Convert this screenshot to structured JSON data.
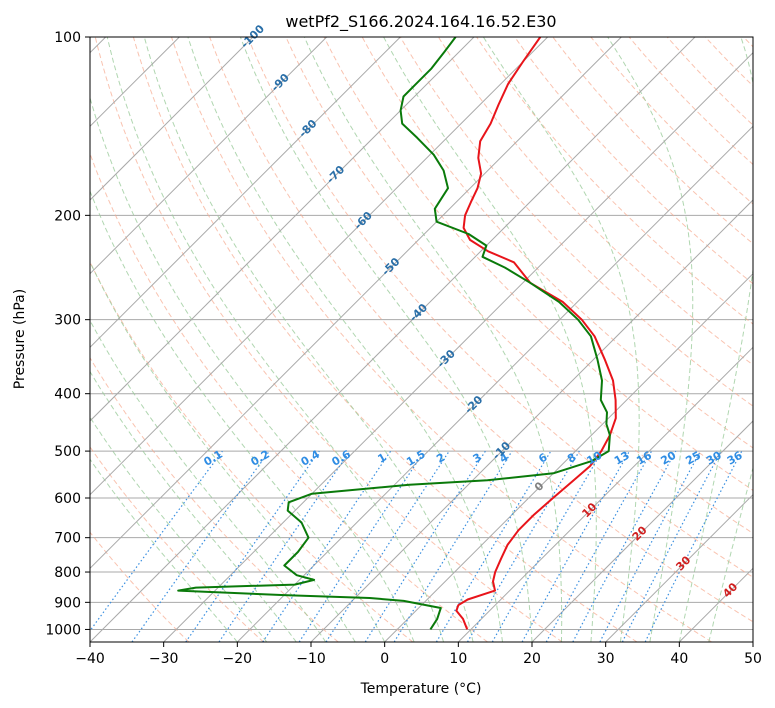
{
  "chart_data": {
    "type": "line",
    "title": "wetPf2_S166.2024.164.16.52.E30",
    "xlabel": "Temperature (°C)",
    "ylabel": "Pressure (hPa)",
    "xlim": [
      -40,
      50
    ],
    "ylim": [
      1050,
      100
    ],
    "y_scale": "log",
    "grid": true,
    "x_ticks": [
      -40,
      -30,
      -20,
      -10,
      0,
      10,
      20,
      30,
      40,
      50
    ],
    "y_ticks": [
      100,
      200,
      300,
      400,
      500,
      600,
      700,
      800,
      900,
      1000
    ],
    "isotherm_labels": [
      "-100",
      "-90",
      "-80",
      "-70",
      "-60",
      "-50",
      "-40",
      "-30",
      "-20",
      "-10",
      "0",
      "10",
      "20",
      "30",
      "40"
    ],
    "mixing_ratio_labels": [
      "0.1",
      "0.2",
      "0.4",
      "0.6",
      "1",
      "1.5",
      "2",
      "3",
      "4",
      "6",
      "8",
      "10",
      "13",
      "16",
      "20",
      "25",
      "30",
      "36"
    ],
    "colors": {
      "temperature": "#e8141a",
      "dewpoint": "#0a7a0a",
      "dry_adiabat": "#f6a98e",
      "moist_adiabat": "#9ccc9c",
      "mixing_ratio": "#3a8fe0",
      "isotherm": "#a9a9a9",
      "iso_label": "#2a6fa8",
      "iso_label_warm": "#d02020",
      "iso_label_zero": "#808080",
      "mr_label": "#2f8de4"
    },
    "series": [
      {
        "name": "",
        "role": "temperature",
        "points": [
          [
            9.5,
            1000
          ],
          [
            7.5,
            960
          ],
          [
            5.5,
            930
          ],
          [
            5.0,
            910
          ],
          [
            5.5,
            890
          ],
          [
            8.0,
            860
          ],
          [
            6.5,
            830
          ],
          [
            5.5,
            800
          ],
          [
            4.5,
            760
          ],
          [
            3.5,
            720
          ],
          [
            3.0,
            680
          ],
          [
            3.0,
            640
          ],
          [
            3.3,
            600
          ],
          [
            3.7,
            560
          ],
          [
            4.0,
            530
          ],
          [
            3.5,
            500
          ],
          [
            2.5,
            470
          ],
          [
            1.0,
            440
          ],
          [
            -1.5,
            410
          ],
          [
            -4.5,
            380
          ],
          [
            -8.5,
            350
          ],
          [
            -13.0,
            320
          ],
          [
            -17.0,
            300
          ],
          [
            -22.0,
            280
          ],
          [
            -29.0,
            260
          ],
          [
            -34.0,
            240
          ],
          [
            -39.0,
            230
          ],
          [
            -43.0,
            220
          ],
          [
            -45.5,
            210
          ],
          [
            -47.0,
            200
          ],
          [
            -48.0,
            190
          ],
          [
            -49.0,
            180
          ],
          [
            -50.5,
            170
          ],
          [
            -53.0,
            160
          ],
          [
            -55.0,
            150
          ],
          [
            -56.0,
            140
          ],
          [
            -57.5,
            130
          ],
          [
            -59.0,
            120
          ],
          [
            -60.0,
            110
          ],
          [
            -61.0,
            100
          ]
        ]
      },
      {
        "name": "",
        "role": "dewpoint",
        "points": [
          [
            4.5,
            1000
          ],
          [
            4.0,
            960
          ],
          [
            3.0,
            920
          ],
          [
            -3.0,
            895
          ],
          [
            -8.0,
            885
          ],
          [
            -20.0,
            875
          ],
          [
            -35.0,
            860
          ],
          [
            -33.0,
            850
          ],
          [
            -20.0,
            840
          ],
          [
            -18.0,
            825
          ],
          [
            -21.0,
            810
          ],
          [
            -24.0,
            780
          ],
          [
            -24.0,
            740
          ],
          [
            -24.5,
            700
          ],
          [
            -27.5,
            660
          ],
          [
            -31.0,
            630
          ],
          [
            -32.0,
            610
          ],
          [
            -30.0,
            590
          ],
          [
            -18.0,
            570
          ],
          [
            -8.0,
            560
          ],
          [
            0.0,
            545
          ],
          [
            3.5,
            520
          ],
          [
            4.5,
            500
          ],
          [
            2.5,
            470
          ],
          [
            0.5,
            450
          ],
          [
            -1.0,
            430
          ],
          [
            -3.5,
            410
          ],
          [
            -6.0,
            380
          ],
          [
            -9.5,
            350
          ],
          [
            -13.5,
            320
          ],
          [
            -17.5,
            300
          ],
          [
            -22.5,
            280
          ],
          [
            -29.0,
            260
          ],
          [
            -34.5,
            245
          ],
          [
            -39.0,
            235
          ],
          [
            -40.0,
            225
          ],
          [
            -44.0,
            215
          ],
          [
            -50.0,
            205
          ],
          [
            -52.0,
            195
          ],
          [
            -53.0,
            180
          ],
          [
            -56.0,
            168
          ],
          [
            -59.5,
            158
          ],
          [
            -64.0,
            148
          ],
          [
            -68.0,
            140
          ],
          [
            -70.0,
            133
          ],
          [
            -71.5,
            126
          ],
          [
            -71.5,
            120
          ],
          [
            -71.5,
            113
          ],
          [
            -72.0,
            106
          ],
          [
            -72.5,
            100
          ]
        ]
      }
    ]
  }
}
